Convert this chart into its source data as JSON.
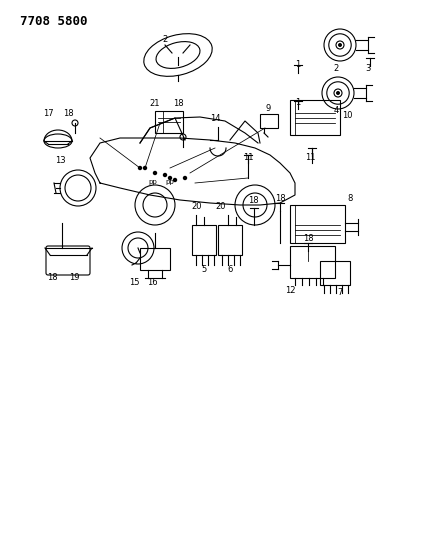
{
  "title": "7708 5800",
  "bg_color": "#ffffff",
  "line_color": "#000000",
  "fig_width": 4.28,
  "fig_height": 5.33,
  "dpi": 100
}
